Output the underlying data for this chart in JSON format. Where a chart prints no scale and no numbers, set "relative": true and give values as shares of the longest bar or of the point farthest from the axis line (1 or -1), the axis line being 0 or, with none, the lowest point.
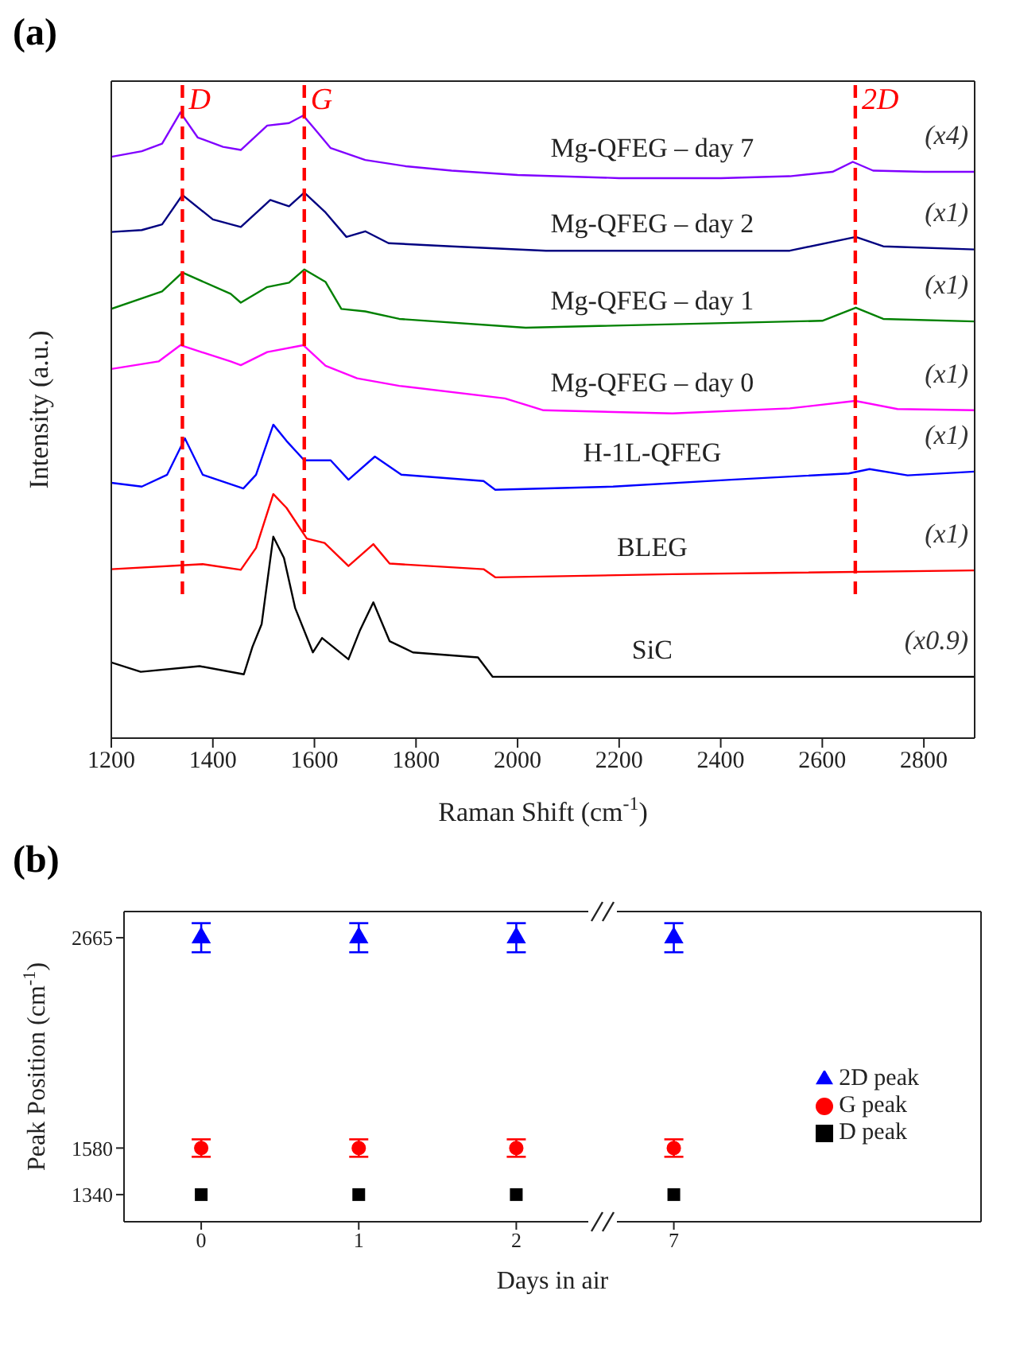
{
  "chart_data": [
    {
      "type": "line",
      "title": "(a)",
      "xlabel": "Raman Shift (cm$^{-1}$)",
      "ylabel": "Intensity (a.u.)",
      "relative": true,
      "xlim": [
        1200,
        2900
      ],
      "xticks": [
        1200,
        1400,
        1600,
        1800,
        2000,
        2200,
        2400,
        2600,
        2800
      ],
      "grid": false,
      "marker": "none",
      "line_style": "solid",
      "series": [
        {
          "name": "Mg-QFEG – day  7",
          "color": "#8000ff",
          "x": [
            1200,
            1260,
            1300,
            1336,
            1370,
            1420,
            1455,
            1507,
            1550,
            1578,
            1600,
            1632,
            1700,
            1780,
            1870,
            2000,
            2200,
            2400,
            2536,
            2620,
            2660,
            2700,
            2800,
            2900
          ],
          "values": [
            0.929,
            0.938,
            0.95,
            1.0,
            0.96,
            0.945,
            0.94,
            0.979,
            0.983,
            0.995,
            0.974,
            0.943,
            0.924,
            0.914,
            0.907,
            0.9,
            0.895,
            0.895,
            0.898,
            0.905,
            0.921,
            0.907,
            0.905,
            0.905
          ]
        },
        {
          "name": "Mg-QFEG – day  2",
          "color": "#000080",
          "x": [
            1200,
            1260,
            1300,
            1340,
            1400,
            1455,
            1513,
            1550,
            1580,
            1622,
            1663,
            1700,
            1746,
            1870,
            2056,
            2536,
            2666,
            2720,
            2900
          ],
          "values": [
            0.809,
            0.812,
            0.821,
            0.868,
            0.829,
            0.817,
            0.86,
            0.85,
            0.872,
            0.84,
            0.801,
            0.81,
            0.791,
            0.786,
            0.779,
            0.779,
            0.801,
            0.786,
            0.781
          ]
        },
        {
          "name": "Mg-QFEG – day  1",
          "color": "#008000",
          "x": [
            1200,
            1300,
            1340,
            1435,
            1455,
            1507,
            1550,
            1580,
            1622,
            1653,
            1700,
            1767,
            2016,
            2600,
            2666,
            2720,
            2900
          ],
          "values": [
            0.686,
            0.714,
            0.744,
            0.71,
            0.696,
            0.721,
            0.728,
            0.749,
            0.729,
            0.686,
            0.682,
            0.67,
            0.656,
            0.667,
            0.688,
            0.67,
            0.666
          ]
        },
        {
          "name": "Mg-QFEG – day  0",
          "color": "#ff00ff",
          "x": [
            1200,
            1293,
            1336,
            1435,
            1455,
            1507,
            1578,
            1622,
            1684,
            1767,
            1975,
            2051,
            2305,
            2536,
            2665,
            2748,
            2900
          ],
          "values": [
            0.59,
            0.602,
            0.628,
            0.602,
            0.596,
            0.617,
            0.628,
            0.595,
            0.575,
            0.563,
            0.543,
            0.524,
            0.519,
            0.527,
            0.539,
            0.526,
            0.524
          ]
        },
        {
          "name": "H-1L-QFEG",
          "color": "#0000ff",
          "x": [
            1200,
            1260,
            1310,
            1345,
            1380,
            1460,
            1485,
            1519,
            1545,
            1580,
            1632,
            1667,
            1719,
            1771,
            1933,
            1956,
            2188,
            2420,
            2652,
            2693,
            2768,
            2900
          ],
          "values": [
            0.408,
            0.402,
            0.421,
            0.479,
            0.421,
            0.399,
            0.421,
            0.501,
            0.475,
            0.444,
            0.444,
            0.413,
            0.45,
            0.421,
            0.411,
            0.397,
            0.402,
            0.413,
            0.423,
            0.43,
            0.42,
            0.426
          ]
        },
        {
          "name": "BLEG",
          "color": "#ff0000",
          "x": [
            1200,
            1380,
            1455,
            1485,
            1519,
            1545,
            1585,
            1620,
            1667,
            1716,
            1748,
            1933,
            1956,
            2305,
            2900
          ],
          "values": [
            0.27,
            0.278,
            0.269,
            0.304,
            0.39,
            0.368,
            0.319,
            0.312,
            0.275,
            0.31,
            0.279,
            0.27,
            0.257,
            0.262,
            0.268
          ]
        },
        {
          "name": "SiC",
          "color": "#000000",
          "x": [
            1200,
            1258,
            1374,
            1461,
            1478,
            1496,
            1519,
            1540,
            1562,
            1597,
            1615,
            1667,
            1690,
            1716,
            1748,
            1794,
            1922,
            1951,
            2300,
            2900
          ],
          "values": [
            0.121,
            0.106,
            0.115,
            0.102,
            0.146,
            0.182,
            0.322,
            0.288,
            0.208,
            0.137,
            0.16,
            0.126,
            0.173,
            0.217,
            0.155,
            0.137,
            0.129,
            0.098,
            0.098,
            0.098
          ]
        }
      ],
      "ref_lines": [
        {
          "axis": "x",
          "value": 1340,
          "label": "D",
          "color": "#ff0000",
          "line_style": "dashed"
        },
        {
          "axis": "x",
          "value": 1580,
          "label": "G",
          "color": "#ff0000",
          "line_style": "dashed"
        },
        {
          "axis": "x",
          "value": 2665,
          "label": "2D",
          "color": "#ff0000",
          "line_style": "dashed"
        }
      ],
      "annotations": [
        "(x4)",
        "(x1)",
        "(x1)",
        "(x1)",
        "(x1)",
        "(x1)",
        "(x0.9)"
      ]
    },
    {
      "type": "scatter",
      "title": "(b)",
      "xlabel": "Days in air",
      "ylabel": "Peak Position (cm$^{-1}$)",
      "categories": [
        "0",
        "1",
        "2",
        "7"
      ],
      "ylim": [
        1200,
        2800
      ],
      "yticks": [
        1340,
        1580,
        2665
      ],
      "grid": false,
      "legend": "right",
      "series": [
        {
          "name": "2D peak",
          "color": "#0000ff",
          "marker": "triangle",
          "values": [
            2665,
            2665,
            2665,
            2665
          ],
          "errors": [
            75,
            75,
            75,
            75
          ]
        },
        {
          "name": "G peak",
          "color": "#ff0000",
          "marker": "circle",
          "values": [
            1580,
            1580,
            1580,
            1580
          ],
          "errors": [
            45,
            45,
            45,
            45
          ]
        },
        {
          "name": "D peak",
          "color": "#000000",
          "marker": "square",
          "values": [
            1340,
            1340,
            1340,
            1340
          ]
        }
      ]
    }
  ]
}
